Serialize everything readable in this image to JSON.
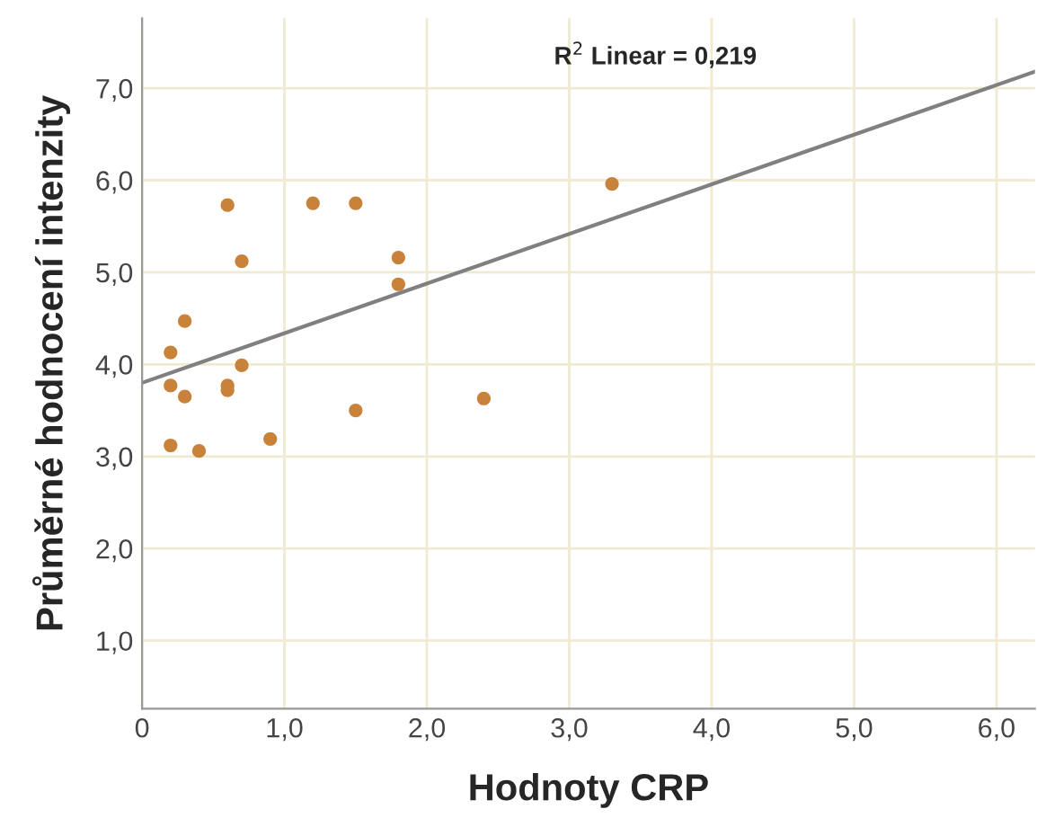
{
  "chart_data": {
    "type": "scatter",
    "xlabel": "Hodnoty CRP",
    "ylabel": "Průměrné hodnocení intenzity",
    "xlim": [
      0,
      6.27
    ],
    "ylim": [
      0.26,
      7.76
    ],
    "xticks": [
      {
        "value": 0,
        "label": "0"
      },
      {
        "value": 1,
        "label": "1,0"
      },
      {
        "value": 2,
        "label": "2,0"
      },
      {
        "value": 3,
        "label": "3,0"
      },
      {
        "value": 4,
        "label": "4,0"
      },
      {
        "value": 5,
        "label": "5,0"
      },
      {
        "value": 6,
        "label": "6,0"
      }
    ],
    "yticks": [
      {
        "value": 1,
        "label": "1,0"
      },
      {
        "value": 2,
        "label": "2,0"
      },
      {
        "value": 3,
        "label": "3,0"
      },
      {
        "value": 4,
        "label": "4,0"
      },
      {
        "value": 5,
        "label": "5,0"
      },
      {
        "value": 6,
        "label": "6,0"
      },
      {
        "value": 7,
        "label": "7,0"
      }
    ],
    "grid": true,
    "series": [
      {
        "marker": "circle",
        "color": "#c8823a",
        "x": [
          0.6,
          1.2,
          1.5,
          0.7,
          1.8,
          1.8,
          0.3,
          0.2,
          0.7,
          0.2,
          0.6,
          0.6,
          0.3,
          1.5,
          2.4,
          3.3,
          0.2,
          0.4,
          0.9
        ],
        "values": [
          5.73,
          5.75,
          5.75,
          5.12,
          5.16,
          4.87,
          4.47,
          4.13,
          3.99,
          3.77,
          3.77,
          3.72,
          3.65,
          3.5,
          3.63,
          5.96,
          3.12,
          3.06,
          3.19
        ]
      },
      {
        "type": "line",
        "color": "#808080",
        "x": [
          0,
          6.27
        ],
        "values": [
          3.8,
          7.18
        ]
      }
    ],
    "annotations": [
      "R$^{2}$ Linear = 0,219"
    ]
  }
}
